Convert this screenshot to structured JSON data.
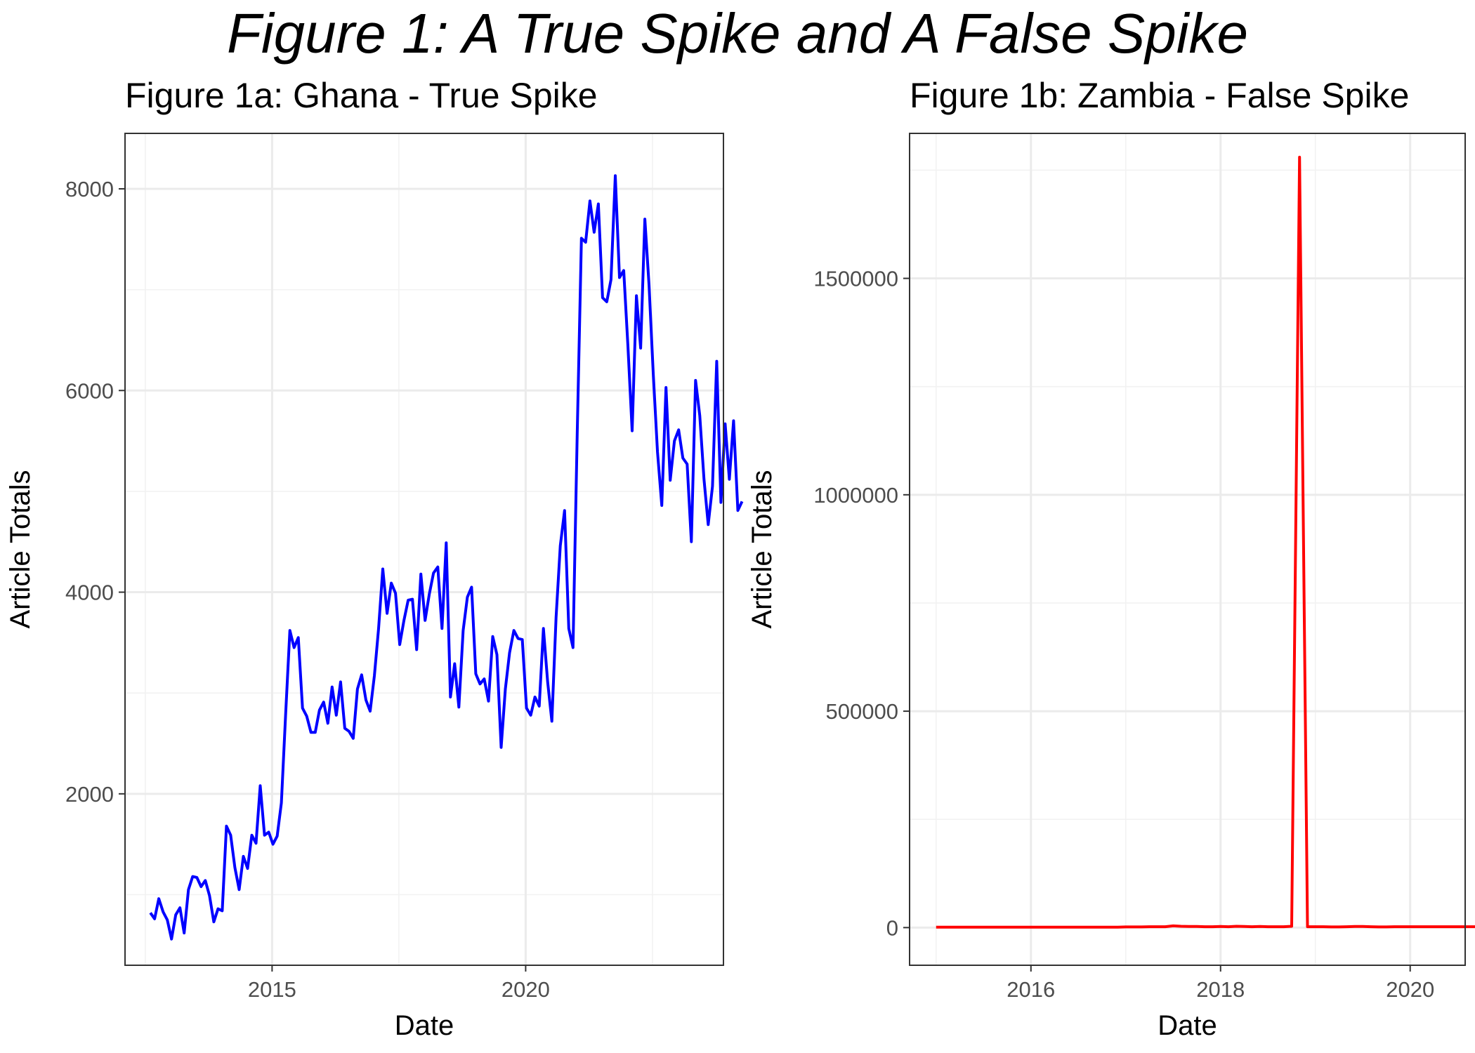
{
  "title": "Figure 1: A True Spike and A False Spike",
  "chart_data": [
    {
      "type": "line",
      "title": "Figure 1a: Ghana - True Spike",
      "xlabel": "Date",
      "ylabel": "Article Totals",
      "x_ticks": [
        "2015",
        "2020"
      ],
      "y_ticks": [
        "2000",
        "4000",
        "6000",
        "8000"
      ],
      "xlim": [
        2012.1,
        2023.9
      ],
      "ylim": [
        300,
        8550
      ],
      "grid": true,
      "line_color": "#0000ff",
      "x_start_year": 2012.6,
      "x_step_months": 1,
      "values": [
        820,
        760,
        960,
        830,
        750,
        560,
        800,
        870,
        620,
        1050,
        1180,
        1170,
        1080,
        1140,
        990,
        730,
        860,
        840,
        1680,
        1590,
        1270,
        1050,
        1380,
        1260,
        1590,
        1510,
        2080,
        1590,
        1620,
        1500,
        1580,
        1910,
        2780,
        3620,
        3450,
        3550,
        2850,
        2770,
        2610,
        2610,
        2830,
        2910,
        2700,
        3060,
        2780,
        3110,
        2650,
        2620,
        2550,
        3040,
        3180,
        2930,
        2820,
        3170,
        3640,
        4230,
        3790,
        4090,
        3990,
        3480,
        3720,
        3920,
        3930,
        3430,
        4180,
        3720,
        3980,
        4190,
        4250,
        3640,
        4490,
        2960,
        3290,
        2860,
        3620,
        3950,
        4050,
        3190,
        3090,
        3140,
        2920,
        3560,
        3380,
        2460,
        3040,
        3400,
        3620,
        3540,
        3530,
        2850,
        2780,
        2960,
        2870,
        3640,
        3110,
        2720,
        3750,
        4460,
        4810,
        3640,
        3450,
        5570,
        7510,
        7470,
        7880,
        7570,
        7850,
        6920,
        6880,
        7100,
        8130,
        7120,
        7190,
        6440,
        5600,
        6940,
        6420,
        7700,
        7040,
        6160,
        5390,
        4860,
        6030,
        5110,
        5500,
        5610,
        5330,
        5270,
        4500,
        6100,
        5750,
        5120,
        4670,
        5050,
        6290,
        4890,
        5670,
        5120,
        5700,
        4810,
        4900
      ]
    },
    {
      "type": "line",
      "title": "Figure 1b: Zambia - False Spike",
      "xlabel": "Date",
      "ylabel": "Article Totals",
      "x_ticks": [
        "2016",
        "2018",
        "2020"
      ],
      "y_ticks": [
        "0",
        "500000",
        "1000000",
        "1500000"
      ],
      "xlim": [
        2014.72,
        2020.58
      ],
      "ylim": [
        -87000,
        1835000
      ],
      "grid": true,
      "line_color": "#ff0000",
      "x_start_year": 2015.0,
      "x_step_months": 1,
      "values": [
        1000,
        1000,
        1000,
        1000,
        1000,
        1000,
        1000,
        1000,
        1000,
        1000,
        1000,
        1000,
        1000,
        1000,
        1000,
        1000,
        1000,
        1000,
        1000,
        1000,
        1000,
        1000,
        1000,
        1000,
        1500,
        1500,
        1500,
        2000,
        2000,
        2000,
        4000,
        3000,
        2500,
        2500,
        2000,
        2000,
        2500,
        2000,
        3000,
        2500,
        2000,
        2500,
        2000,
        2000,
        2000,
        3000,
        1780000,
        2000,
        2000,
        2000,
        1500,
        1500,
        2000,
        2500,
        2500,
        2000,
        1500,
        1500,
        2000,
        2000,
        2000,
        2000,
        2000,
        2000,
        2000,
        2000,
        2000,
        2000,
        2000,
        2000,
        2000,
        2000,
        2000,
        2000,
        50000,
        2000,
        2000
      ]
    }
  ]
}
